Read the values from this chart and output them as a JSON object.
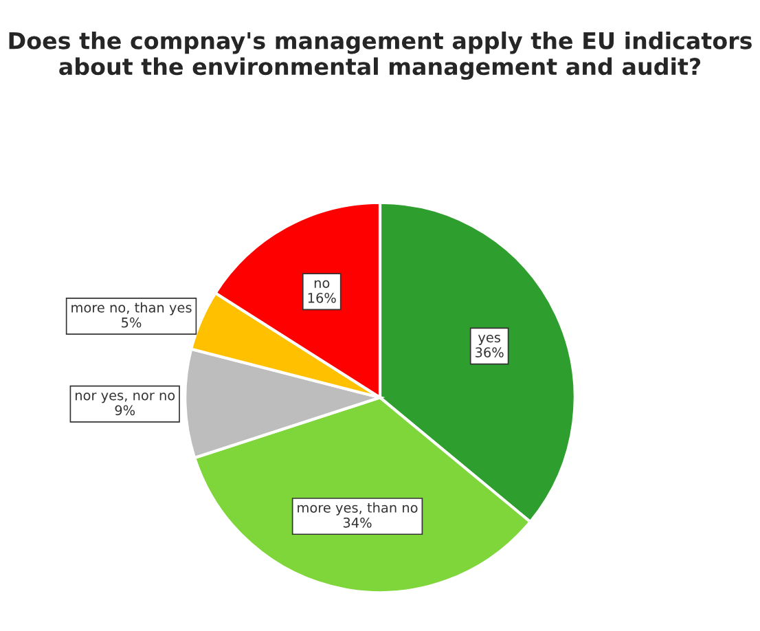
{
  "chart_data": {
    "type": "pie",
    "title": "Does the compnay's management apply the EU indicators about the environmental management and audit?",
    "categories": [
      "yes",
      "more yes, than no",
      "nor yes, nor no",
      "more no, than yes",
      "no"
    ],
    "values": [
      36,
      34,
      9,
      5,
      16
    ],
    "colors": [
      "#2e9e2e",
      "#7ed63a",
      "#bdbdbd",
      "#ffc000",
      "#ff0000"
    ],
    "value_labels": [
      "36%",
      "34%",
      "9%",
      "5%",
      "16%"
    ]
  }
}
